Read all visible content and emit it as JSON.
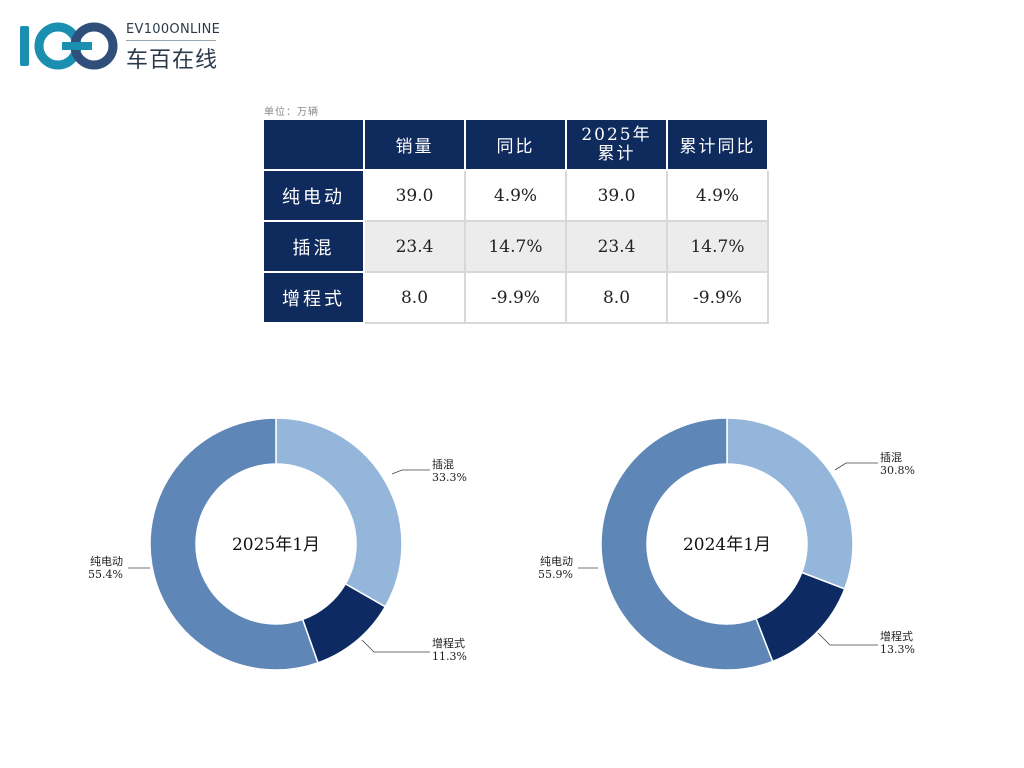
{
  "brand": {
    "en": "EV100ONLINE",
    "cn": "车百在线",
    "logo_mark": "100"
  },
  "table": {
    "unit_note": "单位：万辆",
    "headers": [
      "",
      "销量",
      "同比",
      "2025年累计",
      "累计同比"
    ],
    "header_lines": {
      "cumulative_1": "2025年",
      "cumulative_2": "累计"
    },
    "rows": [
      {
        "label": "纯电动",
        "values": [
          "39.0",
          "4.9%",
          "39.0",
          "4.9%"
        ]
      },
      {
        "label": "插混",
        "values": [
          "23.4",
          "14.7%",
          "23.4",
          "14.7%"
        ]
      },
      {
        "label": "增程式",
        "values": [
          "8.0",
          "-9.9%",
          "8.0",
          "-9.9%"
        ]
      }
    ]
  },
  "colors": {
    "header_bg": "#0f2a5c",
    "bev": "#5e86b6",
    "phev": "#93b6da",
    "erev": "#0d2a62"
  },
  "chart_data": [
    {
      "type": "pie",
      "donut": true,
      "title": "2025年1月",
      "categories": [
        "插混",
        "增程式",
        "纯电动"
      ],
      "values": [
        33.3,
        11.3,
        55.4
      ],
      "labels": [
        "33.3%",
        "11.3%",
        "55.4%"
      ]
    },
    {
      "type": "pie",
      "donut": true,
      "title": "2024年1月",
      "categories": [
        "插混",
        "增程式",
        "纯电动"
      ],
      "values": [
        30.8,
        13.3,
        55.9
      ],
      "labels": [
        "30.8%",
        "13.3%",
        "55.9%"
      ]
    }
  ]
}
